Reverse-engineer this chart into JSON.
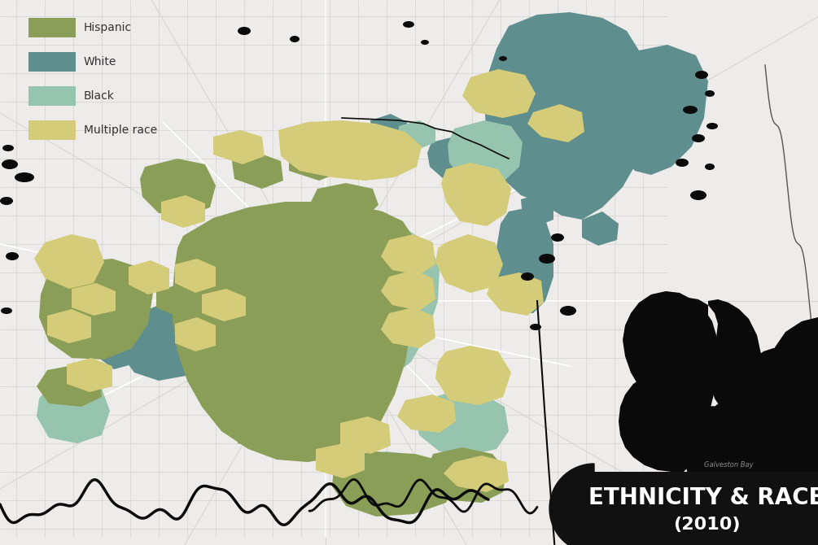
{
  "title_line1": "ETHNICITY & RACE",
  "title_line2": "(2010)",
  "bg_color": "#edecea",
  "road_color": "#ffffff",
  "road_outline": "#d5d3ce",
  "water_color": "#0a0a0a",
  "legend_items": [
    {
      "label": "Hispanic",
      "color": "#8b9e58"
    },
    {
      "label": "White",
      "color": "#5e8e8e"
    },
    {
      "label": "Black",
      "color": "#96c4ae"
    },
    {
      "label": "Multiple race",
      "color": "#d4cc78"
    }
  ],
  "title_bg": "#111111",
  "title_text_color": "#ffffff",
  "title_fontsize": 20,
  "subtitle_fontsize": 16,
  "legend_fontsize": 10,
  "figsize": [
    10.05,
    6.7
  ],
  "dpi": 100
}
